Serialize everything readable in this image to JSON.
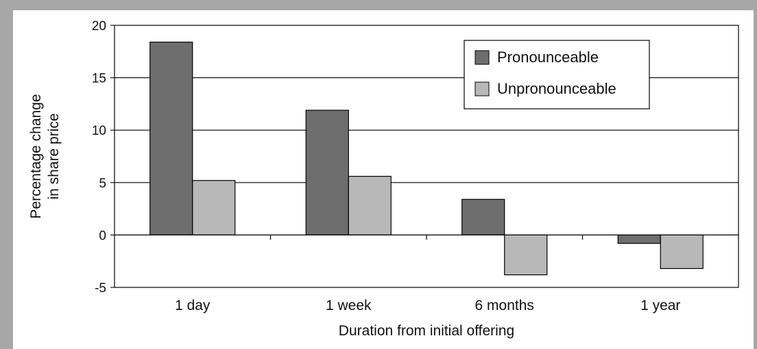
{
  "chart_data": {
    "type": "bar",
    "title": "",
    "xlabel": "Duration from initial offering",
    "ylabel_lines": [
      "Percentage change",
      "in share price"
    ],
    "categories": [
      "1 day",
      "1 week",
      "6 months",
      "1 year"
    ],
    "ylim": [
      -5,
      20
    ],
    "yticks": [
      -5,
      0,
      5,
      10,
      15,
      20
    ],
    "ytick_labels": [
      "-5",
      "0",
      "5",
      "10",
      "15",
      "20"
    ],
    "grid": true,
    "legend_position": "top-right",
    "series": [
      {
        "name": "Pronounceable",
        "values": [
          18.4,
          11.9,
          3.4,
          -0.8
        ],
        "color": "#6e6e6e"
      },
      {
        "name": "Unpronounceable",
        "values": [
          5.2,
          5.6,
          -3.8,
          -3.2
        ],
        "color": "#b8b8b8"
      }
    ]
  }
}
